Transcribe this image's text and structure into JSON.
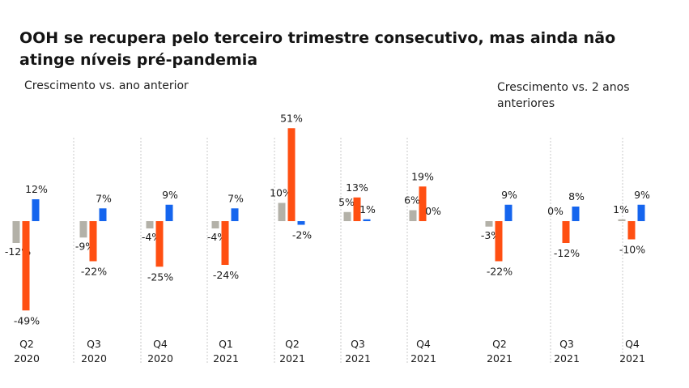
{
  "title": "OOH se recupera pelo terceiro trimestre consecutivo, mas ainda não atinge níveis pré-pandemia",
  "colors": {
    "gray": "#b3b1a8",
    "orange": "#ff4f12",
    "blue": "#1565ee",
    "divider": "#c8c8c8"
  },
  "chart_data": [
    {
      "type": "bar",
      "subtitle": "Crescimento vs. ano anterior",
      "categories": [
        [
          "Q2",
          "2020"
        ],
        [
          "Q3",
          "2020"
        ],
        [
          "Q4",
          "2020"
        ],
        [
          "Q1",
          "2021"
        ],
        [
          "Q2",
          "2021"
        ],
        [
          "Q3",
          "2021"
        ],
        [
          "Q4",
          "2021"
        ]
      ],
      "series": [
        {
          "color": "gray",
          "values": [
            -12,
            -9,
            -4,
            -4,
            10,
            5,
            6
          ],
          "labels": [
            "-12%",
            "-9%",
            "-4%",
            "-4%",
            "10%",
            "5%",
            "6%"
          ]
        },
        {
          "color": "orange",
          "values": [
            -49,
            -22,
            -25,
            -24,
            51,
            13,
            19
          ],
          "labels": [
            "-49%",
            "-22%",
            "-25%",
            "-24%",
            "51%",
            "13%",
            "19%"
          ]
        },
        {
          "color": "blue",
          "values": [
            12,
            7,
            9,
            7,
            -2,
            1,
            0
          ],
          "labels": [
            "12%",
            "7%",
            "9%",
            "7%",
            "-2%",
            "1%",
            "0%"
          ]
        }
      ]
    },
    {
      "type": "bar",
      "subtitle": "Crescimento vs. 2 anos anteriores",
      "categories": [
        [
          "Q2",
          "2021"
        ],
        [
          "Q3",
          "2021"
        ],
        [
          "Q4",
          "2021"
        ]
      ],
      "series": [
        {
          "color": "gray",
          "values": [
            -3,
            0,
            1
          ],
          "labels": [
            "-3%",
            "0%",
            "1%"
          ]
        },
        {
          "color": "orange",
          "values": [
            -22,
            -12,
            -10
          ],
          "labels": [
            "-22%",
            "-12%",
            "-10%"
          ]
        },
        {
          "color": "blue",
          "values": [
            9,
            8,
            9
          ],
          "labels": [
            "9%",
            "8%",
            "9%"
          ]
        }
      ]
    }
  ]
}
